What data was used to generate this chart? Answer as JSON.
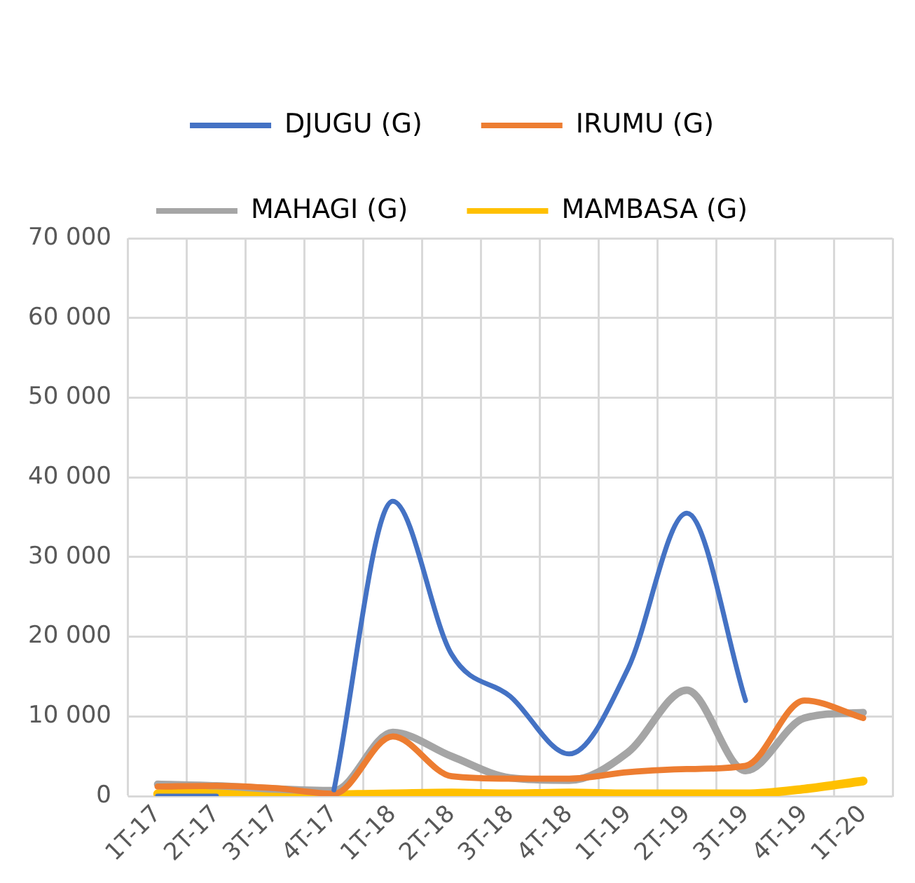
{
  "chart_data": {
    "type": "line",
    "categories": [
      "1T-17",
      "2T-17",
      "3T-17",
      "4T-17",
      "1T-18",
      "2T-18",
      "3T-18",
      "4T-18",
      "1T-19",
      "2T-19",
      "3T-19",
      "4T-19",
      "1T-20"
    ],
    "series": [
      {
        "name": "DJUGU (G)",
        "color": "#4472c4",
        "values": [
          0,
          0,
          null,
          800,
          37000,
          17800,
          12500,
          5300,
          16000,
          35500,
          12000,
          null,
          null
        ]
      },
      {
        "name": "IRUMU (G)",
        "color": "#ed7d31",
        "values": [
          1200,
          1300,
          1000,
          300,
          7500,
          2500,
          2200,
          2200,
          3000,
          3400,
          3800,
          12000,
          9800
        ]
      },
      {
        "name": "MAHAGI (G)",
        "color": "#a5a5a5",
        "values": [
          1500,
          1300,
          900,
          700,
          8000,
          5000,
          2300,
          2000,
          5500,
          13300,
          3200,
          9800,
          10500
        ]
      },
      {
        "name": "MAMBASA (G)",
        "color": "#ffc000",
        "values": [
          300,
          500,
          400,
          200,
          300,
          400,
          300,
          400,
          300,
          300,
          300,
          900,
          1900
        ]
      }
    ],
    "ylim": [
      0,
      70000
    ],
    "yticks": [
      {
        "value": 0,
        "label": "0"
      },
      {
        "value": 10000,
        "label": "10 000"
      },
      {
        "value": 20000,
        "label": "20 000"
      },
      {
        "value": 30000,
        "label": "30 000"
      },
      {
        "value": 40000,
        "label": "40 000"
      },
      {
        "value": 50000,
        "label": "50 000"
      },
      {
        "value": 60000,
        "label": "60 000"
      },
      {
        "value": 70000,
        "label": "70 000"
      }
    ],
    "grid": true,
    "legend": "top",
    "marker": "none",
    "line_style": "solid"
  }
}
